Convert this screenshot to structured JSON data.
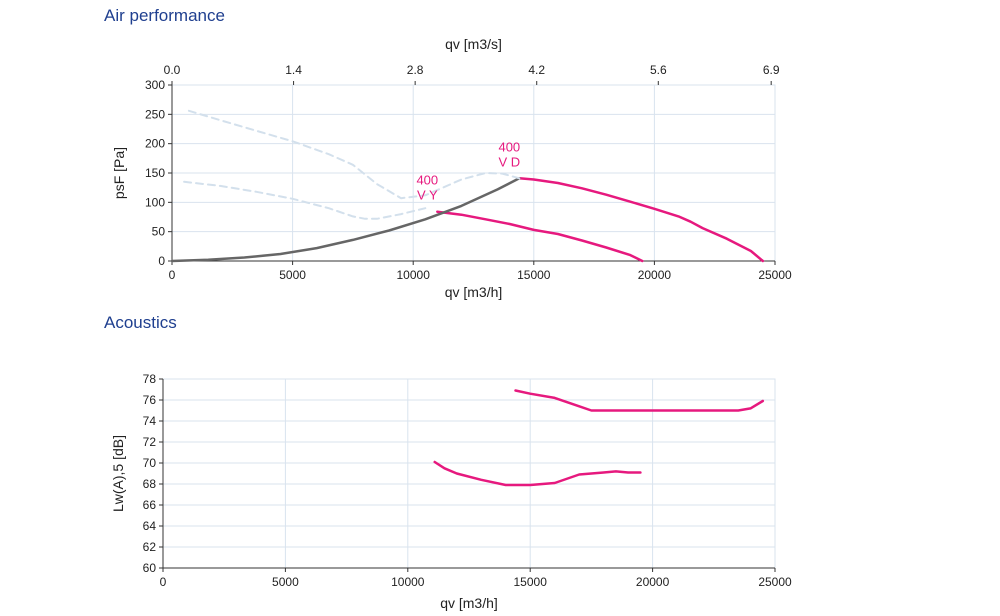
{
  "sections": {
    "air_title": "Air performance",
    "acoustics_title": "Acoustics"
  },
  "chart_data": [
    {
      "type": "line",
      "title": "Air performance",
      "xlabel": "qv [m3/h]",
      "ylabel": "psF [Pa]",
      "x2label": "qv [m3/s]",
      "xlim": [
        0,
        25000
      ],
      "ylim": [
        0,
        300
      ],
      "x2lim": [
        0,
        6.944
      ],
      "xticks": [
        0,
        5000,
        10000,
        15000,
        20000,
        25000
      ],
      "yticks": [
        0,
        50,
        100,
        150,
        200,
        250,
        300
      ],
      "x2ticks": [
        0.0,
        1.4,
        2.8,
        4.2,
        5.6,
        6.9
      ],
      "x2ticklabels": [
        "0.0",
        "1.4",
        "2.8",
        "4.2",
        "5.6",
        "6.9"
      ],
      "grid": true,
      "colors": {
        "curve": "#e6197e",
        "system": "#666666",
        "limit": "#d3e0ec",
        "grid": "#d9e3ee"
      },
      "series": [
        {
          "name": "400 V D",
          "label_lines": [
            "400",
            "V D"
          ],
          "kind": "fan",
          "x": [
            14400,
            15000,
            16000,
            17000,
            18000,
            19000,
            20000,
            21000,
            21500,
            22000,
            23000,
            24000,
            24500
          ],
          "y": [
            141,
            139,
            133,
            124,
            113,
            101,
            89,
            76,
            67,
            56,
            38,
            17,
            0
          ]
        },
        {
          "name": "400 V Y",
          "label_lines": [
            "400",
            "V Y"
          ],
          "kind": "fan",
          "x": [
            11000,
            12000,
            13000,
            14000,
            15000,
            16000,
            17000,
            18000,
            19000,
            19500
          ],
          "y": [
            84,
            79,
            71,
            63,
            53,
            46,
            35,
            23,
            10,
            0
          ]
        },
        {
          "kind": "system",
          "x": [
            0,
            1500,
            3000,
            4500,
            6000,
            7500,
            9000,
            10500,
            12000,
            13500,
            14400
          ],
          "y": [
            0,
            2,
            6,
            12,
            22,
            36,
            52,
            71,
            94,
            122,
            141
          ]
        },
        {
          "kind": "limit",
          "x": [
            700,
            2000,
            3500,
            5000,
            6500,
            7500,
            8500,
            9500,
            10500,
            12000,
            13000,
            13700,
            14400
          ],
          "y": [
            256,
            240,
            222,
            204,
            182,
            164,
            131,
            107,
            112,
            139,
            150,
            149,
            141
          ]
        },
        {
          "kind": "limit",
          "x": [
            500,
            2000,
            3500,
            5000,
            6500,
            7500,
            8000,
            8500,
            9500,
            10500
          ],
          "y": [
            135,
            128,
            118,
            106,
            90,
            76,
            72,
            72,
            80,
            90
          ]
        }
      ]
    },
    {
      "type": "line",
      "title": "Acoustics",
      "xlabel": "qv [m3/h]",
      "ylabel": "Lw(A),5 [dB]",
      "xlim": [
        0,
        25000
      ],
      "ylim": [
        60,
        78
      ],
      "xticks": [
        0,
        5000,
        10000,
        15000,
        20000,
        25000
      ],
      "yticks": [
        60,
        62,
        64,
        66,
        68,
        70,
        72,
        74,
        76,
        78
      ],
      "grid": true,
      "colors": {
        "curve": "#e6197e",
        "grid": "#d9e3ee"
      },
      "series": [
        {
          "name": "400 V D",
          "x": [
            14400,
            15000,
            16000,
            17000,
            17500,
            18000,
            19000,
            20000,
            21000,
            22000,
            23000,
            23500,
            24000,
            24500
          ],
          "y": [
            76.9,
            76.6,
            76.2,
            75.4,
            75.0,
            75.0,
            75.0,
            75.0,
            75.0,
            75.0,
            75.0,
            75.0,
            75.2,
            75.9
          ]
        },
        {
          "name": "400 V Y",
          "x": [
            11100,
            11500,
            12000,
            13000,
            14000,
            15000,
            16000,
            17000,
            18000,
            18500,
            19000,
            19500
          ],
          "y": [
            70.1,
            69.5,
            69.0,
            68.4,
            67.9,
            67.9,
            68.1,
            68.9,
            69.1,
            69.2,
            69.1,
            69.1
          ]
        }
      ]
    }
  ]
}
